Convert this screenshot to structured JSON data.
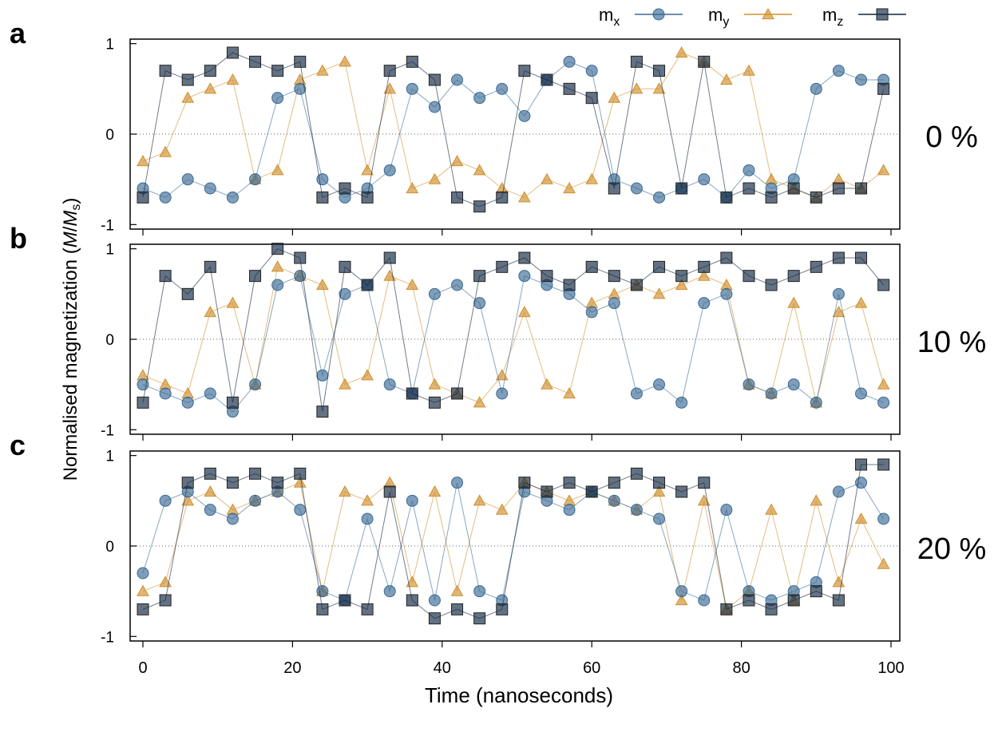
{
  "figure": {
    "ylabel_main": "Normalised magnetization (",
    "ylabel_M": "M",
    "ylabel_slash": "/",
    "ylabel_Ms_M": "M",
    "ylabel_Ms_sub": "s",
    "ylabel_close": ")",
    "xlabel": "Time (nanoseconds)"
  },
  "legend": [
    {
      "base": "m",
      "sub": "x",
      "color": "#3b6a94",
      "marker": "circle"
    },
    {
      "base": "m",
      "sub": "y",
      "color": "#d08f2e",
      "marker": "triangle"
    },
    {
      "base": "m",
      "sub": "z",
      "color": "#0f2740",
      "marker": "square"
    }
  ],
  "x_ticks": [
    "0",
    "20",
    "40",
    "60",
    "80",
    "100"
  ],
  "y_ticks": [
    "1",
    "0",
    "-1"
  ],
  "chart_data": [
    {
      "type": "scatter",
      "panel_label": "a",
      "side_label": "0 %",
      "xlim": [
        0,
        100
      ],
      "ylim": [
        -1.05,
        1.05
      ],
      "x": [
        0,
        3,
        6,
        9,
        12,
        15,
        18,
        21,
        24,
        27,
        30,
        33,
        36,
        39,
        42,
        45,
        48,
        51,
        54,
        57,
        60,
        63,
        66,
        69,
        72,
        75,
        78,
        81,
        84,
        87,
        90,
        93,
        96,
        99
      ],
      "series": [
        {
          "name": "mx",
          "values": [
            -0.6,
            -0.7,
            -0.5,
            -0.6,
            -0.7,
            -0.5,
            0.4,
            0.5,
            -0.5,
            -0.7,
            -0.6,
            -0.4,
            0.5,
            0.3,
            0.6,
            0.4,
            0.5,
            0.2,
            0.6,
            0.8,
            0.7,
            -0.5,
            -0.6,
            -0.7,
            -0.6,
            -0.5,
            -0.7,
            -0.4,
            -0.6,
            -0.5,
            0.5,
            0.7,
            0.6,
            0.6
          ]
        },
        {
          "name": "my",
          "values": [
            -0.3,
            -0.2,
            0.4,
            0.5,
            0.6,
            -0.5,
            -0.4,
            0.6,
            0.7,
            0.8,
            -0.4,
            0.5,
            -0.6,
            -0.5,
            -0.3,
            -0.4,
            -0.6,
            -0.7,
            -0.5,
            -0.6,
            -0.5,
            0.4,
            0.5,
            0.5,
            0.9,
            0.8,
            0.6,
            0.7,
            -0.5,
            -0.6,
            -0.7,
            -0.5,
            -0.6,
            -0.4
          ]
        },
        {
          "name": "mz",
          "values": [
            -0.7,
            0.7,
            0.6,
            0.7,
            0.9,
            0.8,
            0.7,
            0.8,
            -0.7,
            -0.6,
            -0.7,
            0.7,
            0.8,
            0.6,
            -0.7,
            -0.8,
            -0.7,
            0.7,
            0.6,
            0.5,
            0.4,
            -0.6,
            0.8,
            0.7,
            -0.6,
            0.8,
            -0.7,
            -0.6,
            -0.7,
            -0.6,
            -0.7,
            -0.6,
            -0.6,
            0.5
          ]
        }
      ]
    },
    {
      "type": "scatter",
      "panel_label": "b",
      "side_label": "10 %",
      "xlim": [
        0,
        100
      ],
      "ylim": [
        -1.05,
        1.05
      ],
      "x": [
        0,
        3,
        6,
        9,
        12,
        15,
        18,
        21,
        24,
        27,
        30,
        33,
        36,
        39,
        42,
        45,
        48,
        51,
        54,
        57,
        60,
        63,
        66,
        69,
        72,
        75,
        78,
        81,
        84,
        87,
        90,
        93,
        96,
        99
      ],
      "series": [
        {
          "name": "mx",
          "values": [
            -0.5,
            -0.6,
            -0.7,
            -0.6,
            -0.8,
            -0.5,
            0.6,
            0.7,
            -0.4,
            0.5,
            0.6,
            -0.5,
            -0.6,
            0.5,
            0.6,
            0.4,
            -0.6,
            0.7,
            0.6,
            0.5,
            0.3,
            0.4,
            -0.6,
            -0.5,
            -0.7,
            0.4,
            0.5,
            -0.5,
            -0.6,
            -0.5,
            -0.7,
            0.5,
            -0.6,
            -0.7
          ]
        },
        {
          "name": "my",
          "values": [
            -0.4,
            -0.5,
            -0.6,
            0.3,
            0.4,
            -0.5,
            0.8,
            0.7,
            0.6,
            -0.5,
            -0.4,
            0.7,
            0.6,
            -0.5,
            -0.6,
            -0.7,
            -0.4,
            0.3,
            -0.5,
            -0.6,
            0.4,
            0.5,
            0.6,
            0.5,
            0.6,
            0.7,
            0.6,
            -0.5,
            -0.6,
            0.4,
            -0.7,
            0.3,
            0.4,
            -0.5
          ]
        },
        {
          "name": "mz",
          "values": [
            -0.7,
            0.7,
            0.5,
            0.8,
            -0.7,
            0.7,
            1.0,
            0.9,
            -0.8,
            0.8,
            0.6,
            0.9,
            -0.6,
            -0.7,
            -0.6,
            0.7,
            0.8,
            0.9,
            0.7,
            0.6,
            0.8,
            0.7,
            0.6,
            0.8,
            0.7,
            0.8,
            0.9,
            0.7,
            0.6,
            0.7,
            0.8,
            0.9,
            0.9,
            0.6
          ]
        }
      ]
    },
    {
      "type": "scatter",
      "panel_label": "c",
      "side_label": "20 %",
      "xlim": [
        0,
        100
      ],
      "ylim": [
        -1.05,
        1.05
      ],
      "x": [
        0,
        3,
        6,
        9,
        12,
        15,
        18,
        21,
        24,
        27,
        30,
        33,
        36,
        39,
        42,
        45,
        48,
        51,
        54,
        57,
        60,
        63,
        66,
        69,
        72,
        75,
        78,
        81,
        84,
        87,
        90,
        93,
        96,
        99
      ],
      "series": [
        {
          "name": "mx",
          "values": [
            -0.3,
            0.5,
            0.6,
            0.4,
            0.3,
            0.5,
            0.6,
            0.4,
            -0.5,
            -0.6,
            0.3,
            -0.5,
            0.5,
            -0.6,
            0.7,
            -0.5,
            -0.6,
            0.6,
            0.5,
            0.4,
            0.6,
            0.5,
            0.4,
            0.3,
            -0.5,
            -0.6,
            0.4,
            -0.5,
            -0.6,
            -0.5,
            -0.4,
            0.6,
            0.7,
            0.3
          ]
        },
        {
          "name": "my",
          "values": [
            -0.5,
            -0.4,
            0.5,
            0.6,
            0.4,
            0.5,
            0.6,
            0.7,
            -0.5,
            0.6,
            0.5,
            0.7,
            -0.4,
            0.6,
            -0.5,
            0.5,
            0.4,
            0.7,
            0.6,
            0.5,
            0.6,
            0.5,
            0.4,
            0.6,
            -0.6,
            0.5,
            -0.7,
            -0.5,
            0.4,
            -0.6,
            0.5,
            -0.4,
            0.3,
            -0.2
          ]
        },
        {
          "name": "mz",
          "values": [
            -0.7,
            -0.6,
            0.7,
            0.8,
            0.7,
            0.8,
            0.7,
            0.8,
            -0.7,
            -0.6,
            -0.7,
            0.6,
            -0.6,
            -0.8,
            -0.7,
            -0.8,
            -0.7,
            0.7,
            0.6,
            0.7,
            0.6,
            0.7,
            0.8,
            0.7,
            0.6,
            0.7,
            -0.7,
            -0.6,
            -0.7,
            -0.6,
            -0.5,
            -0.6,
            0.9,
            0.9
          ]
        }
      ]
    }
  ]
}
